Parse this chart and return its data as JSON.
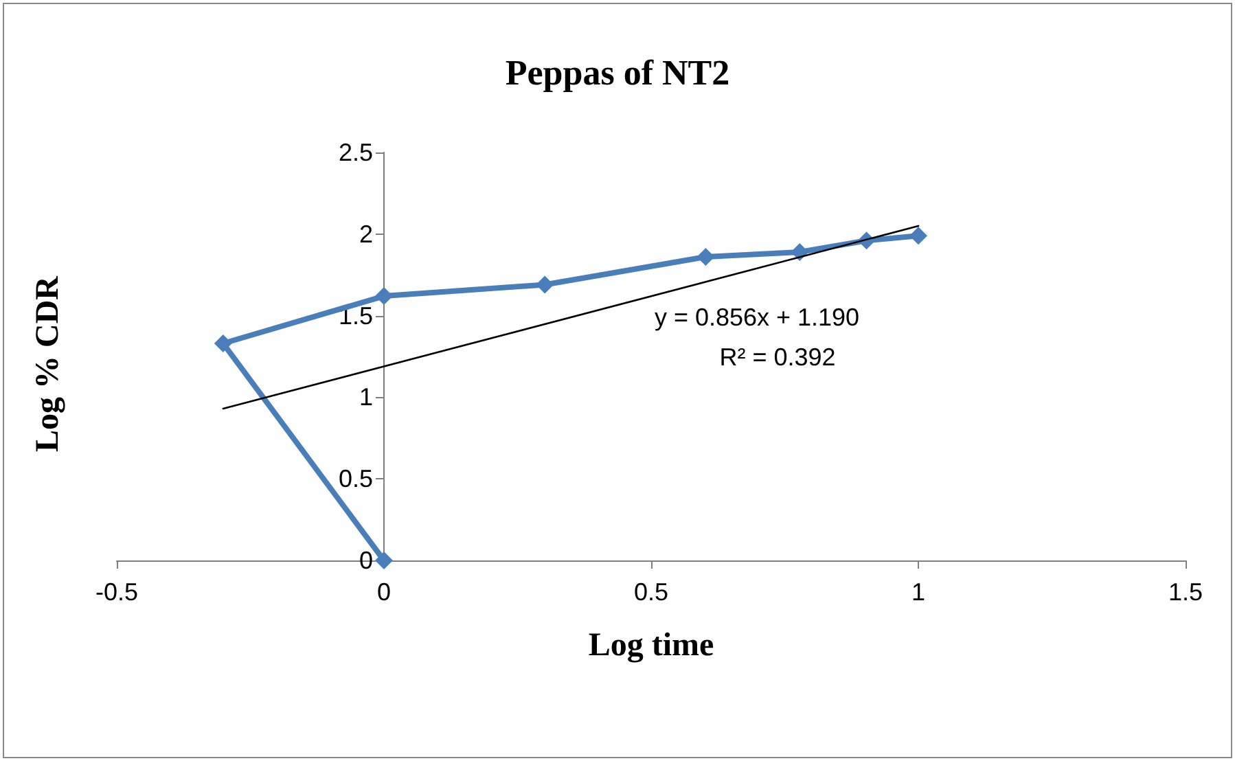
{
  "chart_data": {
    "type": "line",
    "title": "Peppas of NT2",
    "xlabel": "Log time",
    "ylabel": "Log % CDR",
    "series": [
      {
        "color": "#4a7ebb",
        "x": [
          0,
          -0.301,
          0,
          0.301,
          0.602,
          0.778,
          0.903,
          1
        ],
        "values": [
          0,
          1.33,
          1.62,
          1.69,
          1.86,
          1.89,
          1.96,
          1.99
        ],
        "marker": "diamond"
      },
      {
        "color": "#000000",
        "x": [
          -0.301,
          1
        ],
        "values": [
          0.93,
          2.05
        ],
        "marker": "none"
      }
    ],
    "annotations": [
      "y = 0.856x + 1.190",
      "R² = 0.392"
    ],
    "xlim": [
      -0.5,
      1.5
    ],
    "xticks": [
      -0.5,
      0,
      0.5,
      1,
      1.5
    ],
    "ylim": [
      0,
      2.5
    ],
    "yticks": [
      0,
      0.5,
      1,
      1.5,
      2,
      2.5
    ],
    "grid": false
  }
}
